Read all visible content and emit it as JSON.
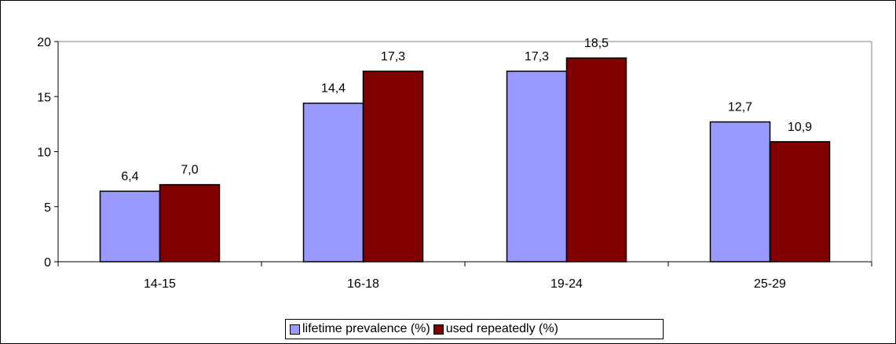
{
  "chart_data": {
    "type": "bar",
    "categories": [
      "14-15",
      "16-18",
      "19-24",
      "25-29"
    ],
    "series": [
      {
        "name": "lifetime prevalence (%)",
        "values": [
          6.4,
          14.4,
          17.3,
          12.7
        ],
        "labels": [
          "6,4",
          "14,4",
          "17,3",
          "12,7"
        ],
        "color": "#9999FF"
      },
      {
        "name": "used repeatedly (%)",
        "values": [
          7.0,
          17.3,
          18.5,
          10.9
        ],
        "labels": [
          "7,0",
          "17,3",
          "18,5",
          "10,9"
        ],
        "color": "#800000"
      }
    ],
    "title": "",
    "xlabel": "",
    "ylabel": "",
    "ylim": [
      0,
      20
    ],
    "yticks": [
      0,
      5,
      10,
      15,
      20
    ],
    "grid": false,
    "legend_position": "bottom-center"
  }
}
